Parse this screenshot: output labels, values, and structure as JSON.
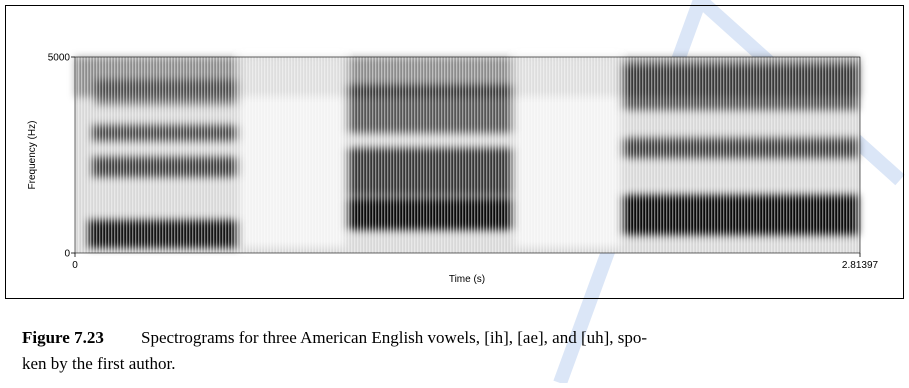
{
  "chart_data": {
    "type": "spectrogram",
    "xlabel": "Time (s)",
    "ylabel": "Frequency (Hz)",
    "xlim": [
      0,
      2.81397
    ],
    "xticks": [
      0,
      2.81397
    ],
    "ylim": [
      0,
      5000
    ],
    "yticks": [
      0,
      5000
    ]
  },
  "caption": {
    "label": "Figure 7.23",
    "lines": [
      "Spectrograms for three American English vowels, [ih], [ae], and [uh], spo-",
      "ken by the first author."
    ]
  }
}
